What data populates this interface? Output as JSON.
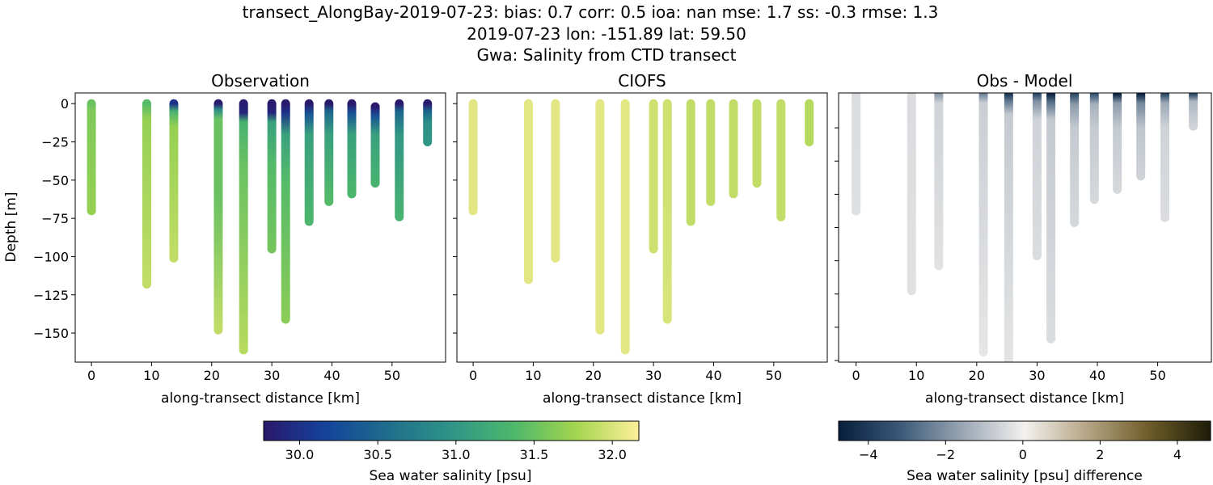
{
  "title_lines": [
    "transect_AlongBay-2019-07-23: bias: 0.7  corr: 0.5  ioa: nan  mse: 1.7  ss: -0.3  rmse: 1.3",
    "2019-07-23 lon: -151.89 lat: 59.50",
    "Gwa: Salinity from CTD transect"
  ],
  "chart_data": [
    {
      "type": "scatter",
      "title": "Observation",
      "xlabel": "along-transect distance [km]",
      "ylabel": "Depth [m]",
      "xlim": [
        -2.7,
        58.9
      ],
      "ylim": [
        -169,
        7
      ],
      "xticks": [
        0,
        10,
        20,
        30,
        40,
        50
      ],
      "xtick_labels": [
        "0",
        "10",
        "20",
        "30",
        "40",
        "50"
      ],
      "yticks": [
        0,
        -25,
        -50,
        -75,
        -100,
        -125,
        -150
      ],
      "ytick_labels": [
        "0",
        "−25",
        "−50",
        "−75",
        "−100",
        "−125",
        "−150"
      ],
      "colormap": "haline",
      "casts": [
        {
          "km": 0.0,
          "max_depth": 70,
          "profile": [
            [
              0,
              31.5
            ],
            [
              5,
              31.6
            ],
            [
              70,
              31.7
            ]
          ]
        },
        {
          "km": 9.2,
          "max_depth": 118,
          "profile": [
            [
              0,
              31.4
            ],
            [
              10,
              31.7
            ],
            [
              118,
              31.9
            ]
          ]
        },
        {
          "km": 13.7,
          "max_depth": 101,
          "profile": [
            [
              0,
              30.0
            ],
            [
              5,
              31.3
            ],
            [
              15,
              31.7
            ],
            [
              101,
              31.9
            ]
          ]
        },
        {
          "km": 21.1,
          "max_depth": 148,
          "profile": [
            [
              0,
              29.8
            ],
            [
              4,
              30.9
            ],
            [
              10,
              31.5
            ],
            [
              60,
              31.5
            ],
            [
              148,
              31.9
            ]
          ]
        },
        {
          "km": 25.3,
          "max_depth": 161,
          "profile": [
            [
              0,
              29.8
            ],
            [
              6,
              29.9
            ],
            [
              12,
              31.3
            ],
            [
              40,
              31.5
            ],
            [
              161,
              31.85
            ]
          ]
        },
        {
          "km": 30.0,
          "max_depth": 95,
          "profile": [
            [
              0,
              29.75
            ],
            [
              6,
              29.9
            ],
            [
              12,
              31.1
            ],
            [
              40,
              31.4
            ],
            [
              95,
              31.55
            ]
          ]
        },
        {
          "km": 32.3,
          "max_depth": 141,
          "profile": [
            [
              0,
              29.75
            ],
            [
              6,
              30.0
            ],
            [
              20,
              31.1
            ],
            [
              50,
              31.4
            ],
            [
              141,
              31.65
            ]
          ]
        },
        {
          "km": 36.2,
          "max_depth": 77,
          "profile": [
            [
              0,
              29.75
            ],
            [
              6,
              30.3
            ],
            [
              20,
              31.1
            ],
            [
              77,
              31.35
            ]
          ]
        },
        {
          "km": 39.5,
          "max_depth": 64,
          "profile": [
            [
              0,
              29.75
            ],
            [
              5,
              30.5
            ],
            [
              20,
              31.1
            ],
            [
              64,
              31.4
            ]
          ]
        },
        {
          "km": 43.3,
          "max_depth": 59,
          "profile": [
            [
              0,
              29.75
            ],
            [
              6,
              30.3
            ],
            [
              20,
              31.1
            ],
            [
              59,
              31.35
            ]
          ]
        },
        {
          "km": 47.2,
          "max_depth": 52,
          "profile": [
            [
              2,
              29.75
            ],
            [
              8,
              30.3
            ],
            [
              20,
              31.1
            ],
            [
              52,
              31.3
            ]
          ]
        },
        {
          "km": 51.2,
          "max_depth": 74,
          "profile": [
            [
              0,
              29.75
            ],
            [
              5,
              30.5
            ],
            [
              20,
              31.0
            ],
            [
              74,
              31.3
            ]
          ]
        },
        {
          "km": 55.9,
          "max_depth": 25,
          "profile": [
            [
              0,
              29.75
            ],
            [
              5,
              30.5
            ],
            [
              12,
              30.9
            ],
            [
              25,
              31.0
            ]
          ]
        }
      ]
    },
    {
      "type": "scatter",
      "title": "CIOFS",
      "xlabel": "along-transect distance [km]",
      "xlim": [
        -2.7,
        58.9
      ],
      "ylim": [
        -169,
        7
      ],
      "xticks": [
        0,
        10,
        20,
        30,
        40,
        50
      ],
      "xtick_labels": [
        "0",
        "10",
        "20",
        "30",
        "40",
        "50"
      ],
      "yticks": [
        0,
        -25,
        -50,
        -75,
        -100,
        -125,
        -150
      ],
      "colormap": "haline",
      "casts": [
        {
          "km": 0.0,
          "max_depth": 70,
          "profile": [
            [
              0,
              32.05
            ],
            [
              70,
              32.05
            ]
          ]
        },
        {
          "km": 9.2,
          "max_depth": 115,
          "profile": [
            [
              0,
              32.05
            ],
            [
              115,
              32.05
            ]
          ]
        },
        {
          "km": 13.7,
          "max_depth": 101,
          "profile": [
            [
              0,
              32.05
            ],
            [
              101,
              32.05
            ]
          ]
        },
        {
          "km": 21.1,
          "max_depth": 148,
          "profile": [
            [
              0,
              32.05
            ],
            [
              148,
              32.05
            ]
          ]
        },
        {
          "km": 25.3,
          "max_depth": 161,
          "profile": [
            [
              0,
              32.05
            ],
            [
              161,
              32.05
            ]
          ]
        },
        {
          "km": 30.0,
          "max_depth": 95,
          "profile": [
            [
              0,
              31.95
            ],
            [
              95,
              31.95
            ]
          ]
        },
        {
          "km": 32.3,
          "max_depth": 141,
          "profile": [
            [
              0,
              31.95
            ],
            [
              141,
              32.0
            ]
          ]
        },
        {
          "km": 36.2,
          "max_depth": 77,
          "profile": [
            [
              0,
              31.9
            ],
            [
              77,
              31.9
            ]
          ]
        },
        {
          "km": 39.5,
          "max_depth": 64,
          "profile": [
            [
              0,
              31.9
            ],
            [
              64,
              31.9
            ]
          ]
        },
        {
          "km": 43.3,
          "max_depth": 59,
          "profile": [
            [
              0,
              31.9
            ],
            [
              59,
              31.9
            ]
          ]
        },
        {
          "km": 47.2,
          "max_depth": 52,
          "profile": [
            [
              0,
              31.9
            ],
            [
              52,
              31.9
            ]
          ]
        },
        {
          "km": 51.2,
          "max_depth": 74,
          "profile": [
            [
              0,
              31.9
            ],
            [
              74,
              31.9
            ]
          ]
        },
        {
          "km": 55.9,
          "max_depth": 25,
          "profile": [
            [
              0,
              31.85
            ],
            [
              25,
              31.85
            ]
          ]
        }
      ]
    },
    {
      "type": "scatter",
      "title": "Obs - Model",
      "xlabel": "along-transect distance [km]",
      "xlim": [
        -2.9,
        58.9
      ],
      "ylim": [
        -161,
        1
      ],
      "xticks": [
        0,
        10,
        20,
        30,
        40,
        50
      ],
      "xtick_labels": [
        "0",
        "10",
        "20",
        "30",
        "40",
        "50"
      ],
      "yticks": [
        -20,
        -40,
        -60,
        -80,
        -100,
        -120,
        -140,
        -160
      ],
      "colormap": "diff",
      "casts": [
        {
          "km": 0.0,
          "max_depth": 70,
          "profile": [
            [
              0,
              -0.4
            ],
            [
              70,
              -0.35
            ]
          ]
        },
        {
          "km": 9.2,
          "max_depth": 118,
          "profile": [
            [
              0,
              -0.4
            ],
            [
              118,
              -0.3
            ]
          ]
        },
        {
          "km": 13.7,
          "max_depth": 103,
          "profile": [
            [
              0,
              -1.8
            ],
            [
              5,
              -0.6
            ],
            [
              103,
              -0.3
            ]
          ]
        },
        {
          "km": 21.1,
          "max_depth": 155,
          "profile": [
            [
              0,
              -2.2
            ],
            [
              5,
              -0.7
            ],
            [
              155,
              -0.2
            ]
          ]
        },
        {
          "km": 25.3,
          "max_depth": 170,
          "profile": [
            [
              0,
              -4.0
            ],
            [
              4,
              -2.5
            ],
            [
              12,
              -0.8
            ],
            [
              170,
              -0.2
            ]
          ]
        },
        {
          "km": 30.0,
          "max_depth": 97,
          "profile": [
            [
              0,
              -3.5
            ],
            [
              4,
              -2.0
            ],
            [
              15,
              -0.6
            ],
            [
              97,
              -0.4
            ]
          ]
        },
        {
          "km": 32.3,
          "max_depth": 147,
          "profile": [
            [
              0,
              -4.5
            ],
            [
              4,
              -2.8
            ],
            [
              15,
              -0.8
            ],
            [
              147,
              -0.4
            ]
          ]
        },
        {
          "km": 36.2,
          "max_depth": 77,
          "profile": [
            [
              0,
              -3.5
            ],
            [
              6,
              -1.8
            ],
            [
              20,
              -0.8
            ],
            [
              77,
              -0.5
            ]
          ]
        },
        {
          "km": 39.5,
          "max_depth": 63,
          "profile": [
            [
              0,
              -3.2
            ],
            [
              6,
              -1.3
            ],
            [
              20,
              -0.8
            ],
            [
              63,
              -0.5
            ]
          ]
        },
        {
          "km": 43.3,
          "max_depth": 57,
          "profile": [
            [
              0,
              -4.5
            ],
            [
              5,
              -1.8
            ],
            [
              20,
              -0.8
            ],
            [
              57,
              -0.5
            ]
          ]
        },
        {
          "km": 47.2,
          "max_depth": 49,
          "profile": [
            [
              0,
              -4.5
            ],
            [
              5,
              -2.2
            ],
            [
              20,
              -0.9
            ],
            [
              49,
              -0.6
            ]
          ]
        },
        {
          "km": 51.2,
          "max_depth": 74,
          "profile": [
            [
              0,
              -3.5
            ],
            [
              5,
              -1.5
            ],
            [
              20,
              -0.6
            ],
            [
              74,
              -0.4
            ]
          ]
        },
        {
          "km": 55.9,
          "max_depth": 19,
          "profile": [
            [
              0,
              -3.5
            ],
            [
              4,
              -1.2
            ],
            [
              19,
              -0.6
            ]
          ]
        }
      ]
    }
  ],
  "colorbars": [
    {
      "label": "Sea water salinity [psu]",
      "colormap": "haline",
      "range": [
        29.77,
        32.17
      ],
      "ticks": [
        30.0,
        30.5,
        31.0,
        31.5,
        32.0
      ],
      "tick_labels": [
        "30.0",
        "30.5",
        "31.0",
        "31.5",
        "32.0"
      ]
    },
    {
      "label": "Sea water salinity [psu] difference",
      "colormap": "diff",
      "range": [
        -4.77,
        4.86
      ],
      "ticks": [
        -4,
        -2,
        0,
        2,
        4
      ],
      "tick_labels": [
        "−4",
        "−2",
        "0",
        "2",
        "4"
      ]
    }
  ],
  "colormaps": {
    "haline": [
      "#2a186c",
      "#14439c",
      "#1f6e8b",
      "#2f9487",
      "#4db86b",
      "#a4d54e",
      "#fdef9a"
    ],
    "diff": [
      "#061e3c",
      "#3b5a78",
      "#9aa6b4",
      "#f3f1ef",
      "#b7a586",
      "#6e5d28",
      "#1c1b08"
    ]
  }
}
